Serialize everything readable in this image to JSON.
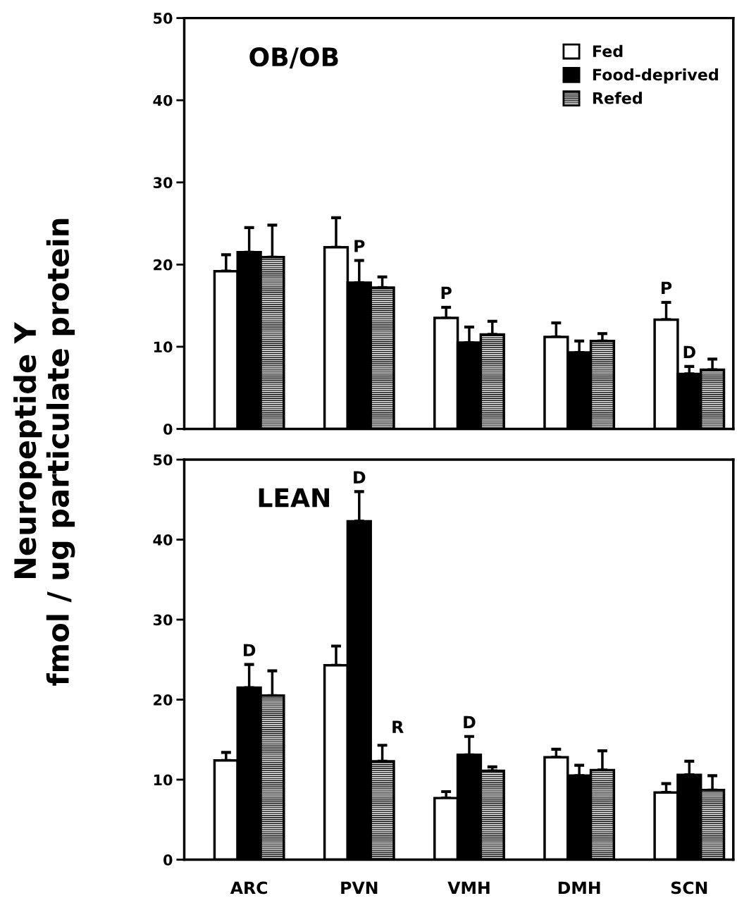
{
  "chart_data": [
    {
      "type": "bar",
      "title": "OB/OB",
      "ylabel": "Neuropeptide Y\nfmol / ug particulate protein",
      "ylim": [
        0,
        50
      ],
      "yticks": [
        0,
        10,
        20,
        30,
        40,
        50
      ],
      "tick_labels": "y",
      "legend": "top right",
      "grid": false,
      "series": [
        {
          "name": "Fed",
          "color": "#ffffff",
          "values": [
            19.2,
            22.1,
            13.5,
            11.2,
            13.3
          ],
          "errors": [
            [
              19.2,
              21.2
            ],
            [
              22.1,
              25.7
            ],
            [
              13.5,
              14.8
            ],
            [
              11.2,
              12.9
            ],
            [
              13.3,
              15.4
            ]
          ]
        },
        {
          "name": "Food-deprived",
          "color": "#000000",
          "values": [
            21.5,
            17.8,
            10.5,
            9.3,
            6.7
          ],
          "errors": [
            [
              21.5,
              24.5
            ],
            [
              17.8,
              20.5
            ],
            [
              10.5,
              12.4
            ],
            [
              9.3,
              10.7
            ],
            [
              6.7,
              7.6
            ]
          ]
        },
        {
          "name": "Refed",
          "color": "#000000",
          "values": [
            20.9,
            17.2,
            11.5,
            10.7,
            7.2
          ],
          "errors": [
            [
              20.9,
              24.8
            ],
            [
              17.2,
              18.5
            ],
            [
              11.5,
              13.1
            ],
            [
              10.7,
              11.6
            ],
            [
              7.2,
              8.5
            ]
          ]
        }
      ],
      "annotations": [
        "P",
        "P",
        "P",
        "D"
      ]
    },
    {
      "type": "bar",
      "title": "LEAN",
      "categories": [
        "ARC",
        "PVN",
        "VMH",
        "DMH",
        "SCN"
      ],
      "ylim": [
        0,
        50
      ],
      "yticks": [
        0,
        10,
        20,
        30,
        40,
        50
      ],
      "grid": false,
      "series": [
        {
          "color": "#ffffff",
          "values": [
            12.4,
            24.3,
            7.7,
            12.8,
            8.4
          ],
          "errors": [
            [
              12.4,
              13.4
            ],
            [
              24.3,
              26.7
            ],
            [
              7.7,
              8.5
            ],
            [
              12.8,
              13.8
            ],
            [
              8.4,
              9.5
            ]
          ]
        },
        {
          "color": "#000000",
          "values": [
            21.5,
            42.3,
            13.1,
            10.5,
            10.6
          ],
          "errors": [
            [
              21.5,
              24.4
            ],
            [
              42.3,
              46.0
            ],
            [
              13.1,
              15.4
            ],
            [
              10.5,
              11.8
            ],
            [
              10.6,
              12.3
            ]
          ]
        },
        {
          "color": "#000000",
          "values": [
            20.5,
            12.3,
            11.1,
            11.2,
            8.7
          ],
          "errors": [
            [
              20.5,
              23.6
            ],
            [
              12.3,
              14.3
            ],
            [
              11.1,
              11.6
            ],
            [
              11.2,
              13.6
            ],
            [
              8.7,
              10.5
            ]
          ]
        }
      ],
      "annotations": [
        "D",
        "D",
        "R",
        "D"
      ]
    }
  ]
}
